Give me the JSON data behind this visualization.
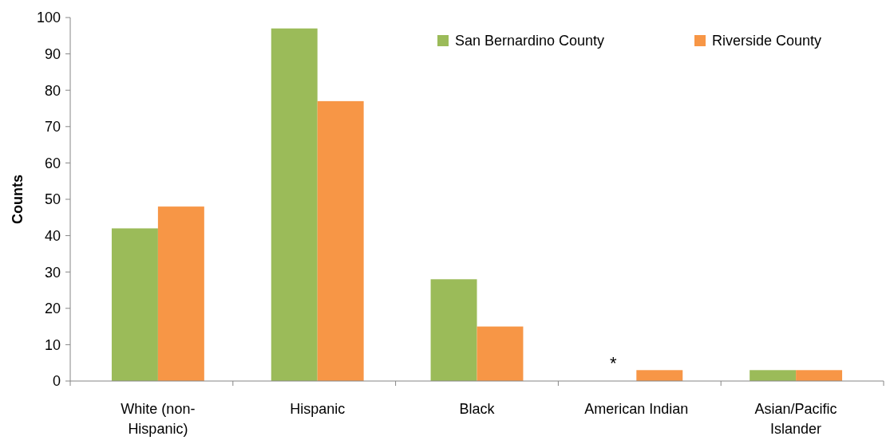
{
  "chart_data": {
    "type": "bar",
    "ylabel": "Counts",
    "categories": [
      "White (non-Hispanic)",
      "Hispanic",
      "Black",
      "American Indian",
      "Asian/Pacific Islander"
    ],
    "series": [
      {
        "name": "San Bernardino County",
        "color": "#9bbb59",
        "values": [
          42,
          97,
          28,
          null,
          3
        ]
      },
      {
        "name": "Riverside County",
        "color": "#f79646",
        "values": [
          48,
          77,
          15,
          3,
          3
        ]
      }
    ],
    "ylim": [
      0,
      100
    ],
    "yticks": [
      0,
      10,
      20,
      30,
      40,
      50,
      60,
      70,
      80,
      90,
      100
    ],
    "grid": false,
    "legend": "top right",
    "annotations": [
      "*"
    ]
  }
}
